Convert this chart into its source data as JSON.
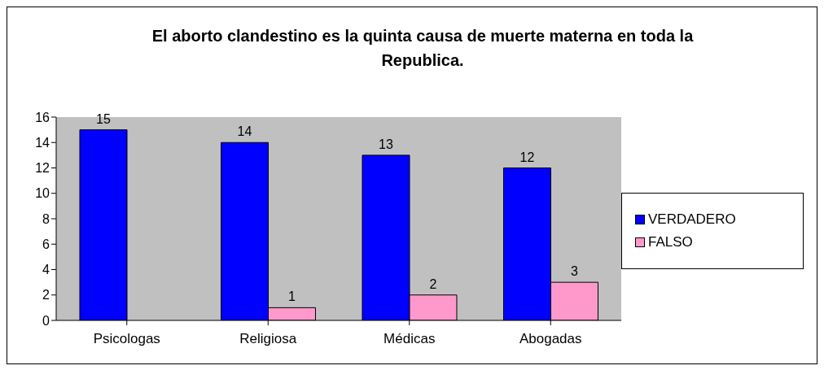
{
  "chart_data": {
    "type": "bar",
    "title": "El aborto clandestino es la quinta causa de muerte materna en toda la Republica.",
    "categories": [
      "Psicologas",
      "Religiosa",
      "Médicas",
      "Abogadas"
    ],
    "series": [
      {
        "name": "VERDADERO",
        "color": "#0000ff",
        "values": [
          15,
          14,
          13,
          12
        ]
      },
      {
        "name": "FALSO",
        "color": "#ff99cc",
        "values": [
          null,
          1,
          2,
          3
        ]
      }
    ],
    "ylim": [
      0,
      16
    ],
    "yticks": [
      0,
      2,
      4,
      6,
      8,
      10,
      12,
      14,
      16
    ],
    "data_labels": true,
    "legend": "right",
    "grid": false
  }
}
